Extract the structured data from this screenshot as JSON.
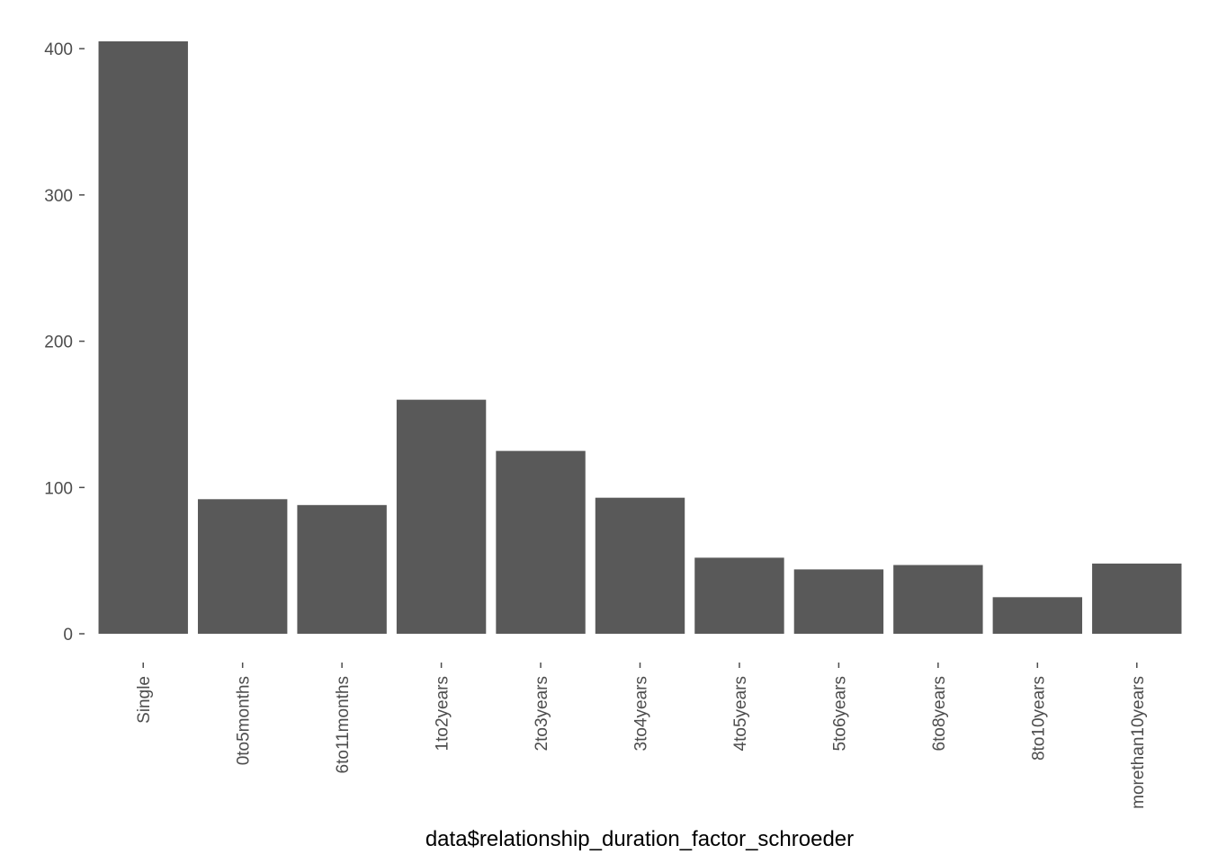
{
  "chart_data": {
    "type": "bar",
    "title": "",
    "xlabel": "data$relationship_duration_factor_schroeder",
    "ylabel": "",
    "categories": [
      "Single",
      "0to5months",
      "6to11months",
      "1to2years",
      "2to3years",
      "3to4years",
      "4to5years",
      "5to6years",
      "6to8years",
      "8to10years",
      "morethan10years"
    ],
    "values": [
      405,
      92,
      88,
      160,
      125,
      93,
      52,
      44,
      47,
      25,
      48
    ],
    "ylim": [
      0,
      405
    ],
    "yticks": [
      0,
      100,
      200,
      300,
      400
    ],
    "grid": false,
    "bar_color": "#595959"
  }
}
